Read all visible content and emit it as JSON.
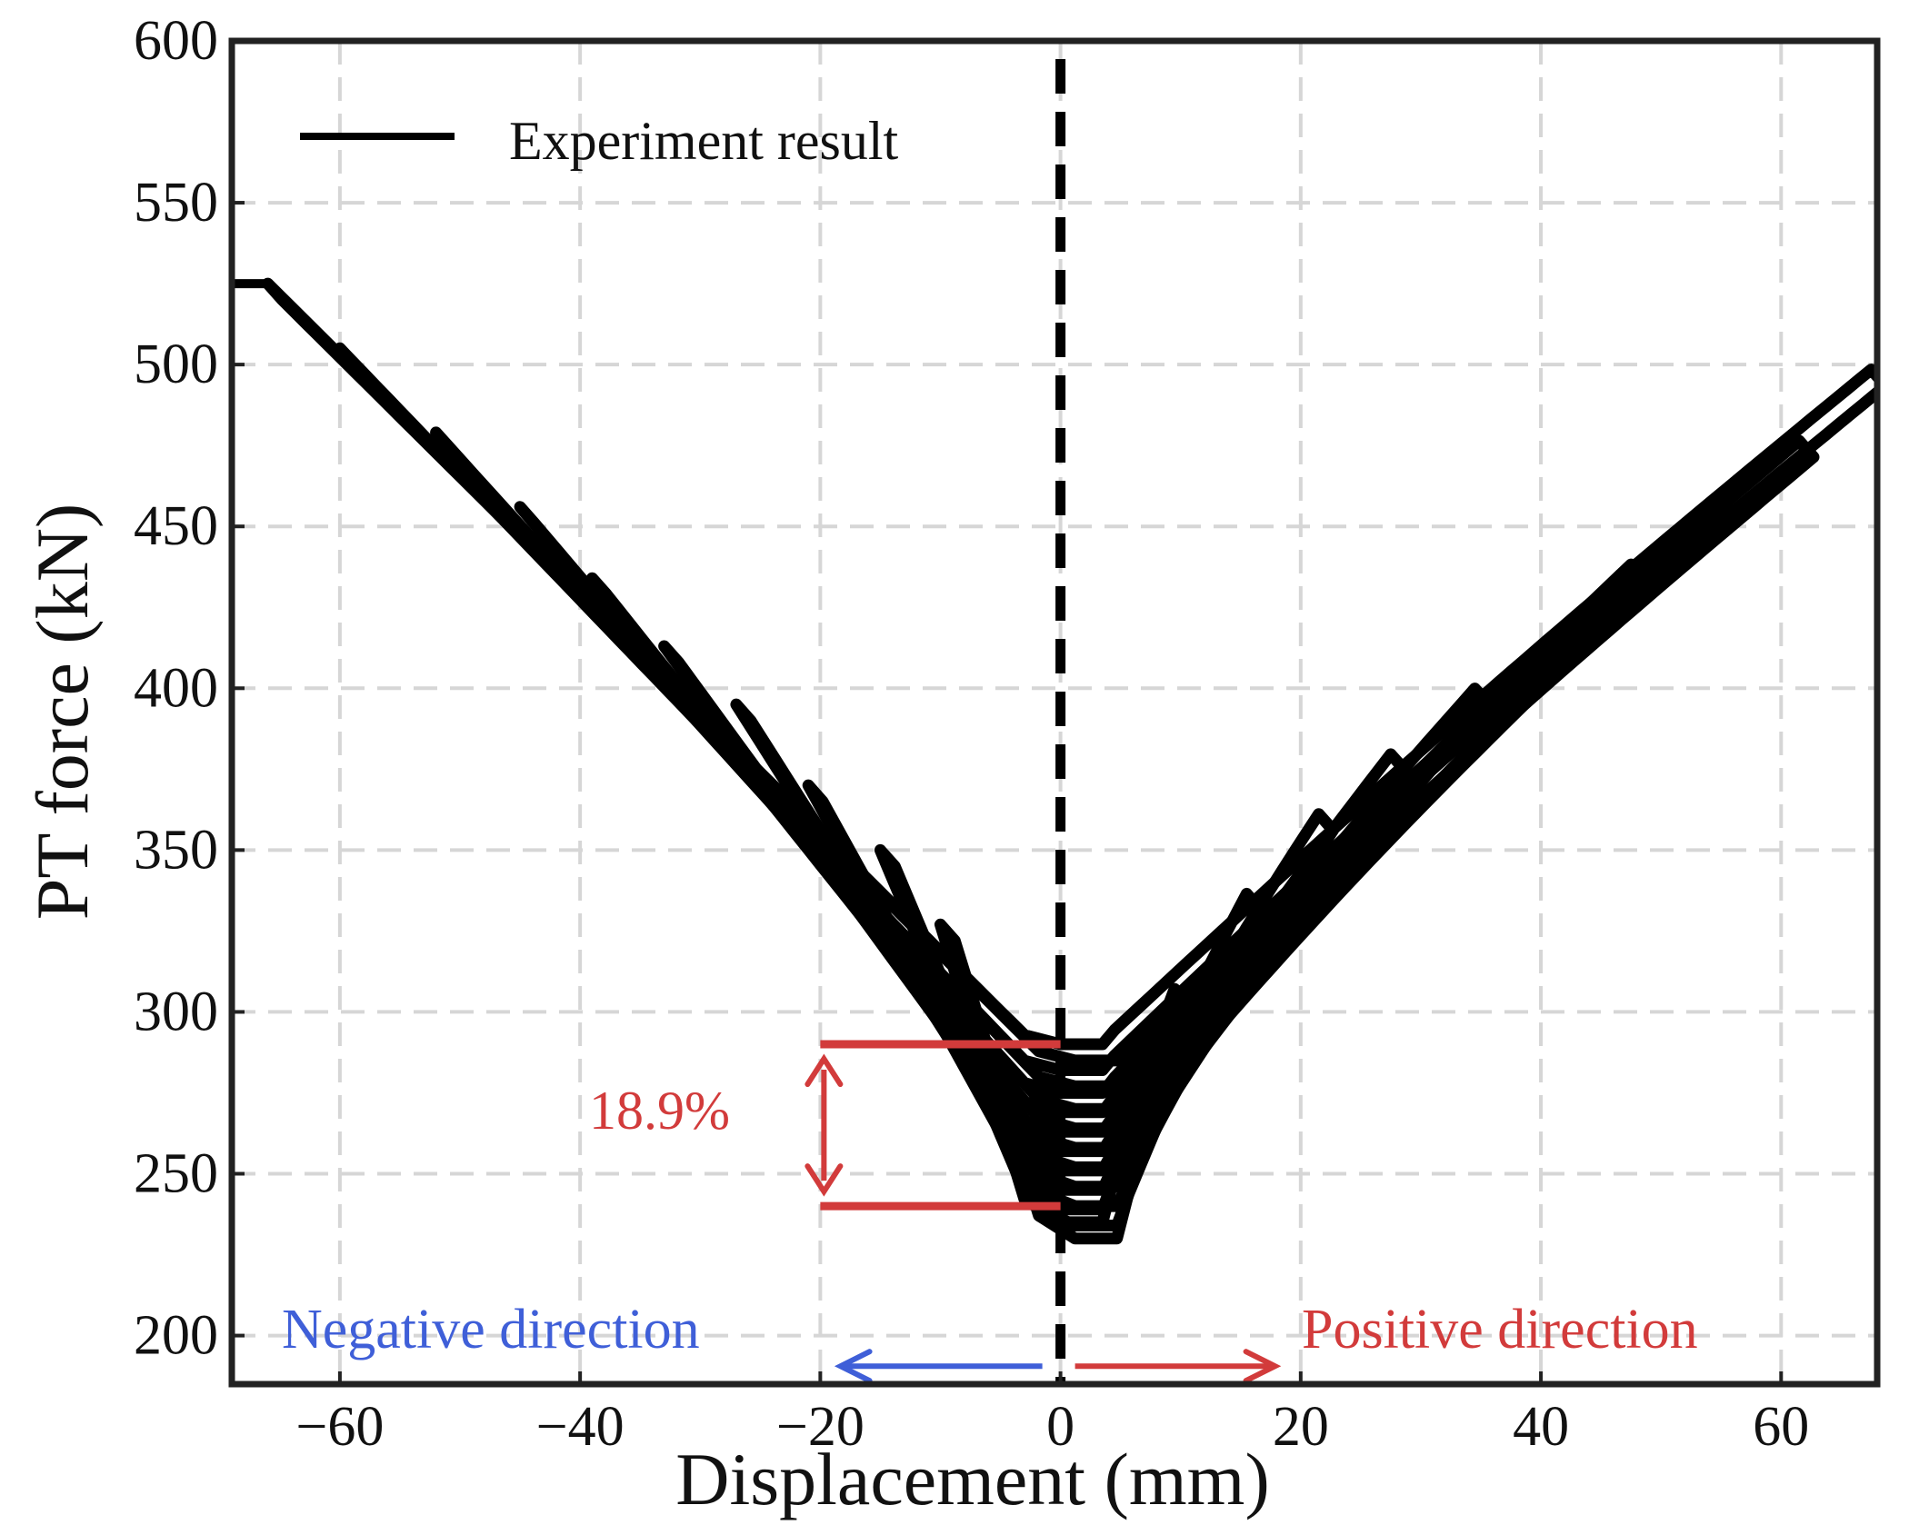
{
  "chart_data": {
    "type": "line",
    "title": "",
    "xlabel": "Displacement (mm)",
    "ylabel": "PT force (kN)",
    "xlim": [
      -69,
      68
    ],
    "ylim": [
      185,
      600
    ],
    "grid": true,
    "xticks": [
      -60,
      -40,
      -20,
      0,
      20,
      40,
      60
    ],
    "xtick_labels": [
      "−60",
      "−40",
      "−20",
      "0",
      "20",
      "40",
      "60"
    ],
    "yticks": [
      200,
      250,
      300,
      350,
      400,
      450,
      500,
      550,
      600
    ],
    "ytick_labels": [
      "200",
      "250",
      "300",
      "350",
      "400",
      "450",
      "500",
      "550",
      "600"
    ],
    "legend": {
      "position": "top-left",
      "entries": [
        "Experiment result"
      ]
    },
    "series": [
      {
        "name": "Experiment result",
        "color": "#000000",
        "description": "cyclic hysteresis loops",
        "loops": [
          {
            "x_min": -66,
            "y_left": 525,
            "y_min": 291,
            "x_max": 68,
            "y_right": 500
          },
          {
            "x_min": -60,
            "y_left": 505,
            "y_min": 283,
            "x_max": 62,
            "y_right": 478
          },
          {
            "x_min": -52,
            "y_left": 479,
            "y_min": 276,
            "x_max": 55,
            "y_right": 460
          },
          {
            "x_min": -45,
            "y_left": 456,
            "y_min": 270,
            "x_max": 48,
            "y_right": 440
          },
          {
            "x_min": -39,
            "y_left": 434,
            "y_min": 264,
            "x_max": 41,
            "y_right": 413
          },
          {
            "x_min": -33,
            "y_left": 413,
            "y_min": 258,
            "x_max": 35,
            "y_right": 402
          },
          {
            "x_min": -27,
            "y_left": 395,
            "y_min": 252,
            "x_max": 28,
            "y_right": 382
          },
          {
            "x_min": -21,
            "y_left": 370,
            "y_min": 246,
            "x_max": 22,
            "y_right": 364
          },
          {
            "x_min": -15,
            "y_left": 350,
            "y_min": 240,
            "x_max": 16,
            "y_right": 340
          },
          {
            "x_min": -10,
            "y_left": 327,
            "y_min": 236,
            "x_max": 10,
            "y_right": 312
          }
        ]
      }
    ],
    "reference_line": {
      "x": 0,
      "style": "dashed",
      "color": "#000000"
    },
    "annotations": {
      "upper_level": 290,
      "lower_level": 240,
      "level_x_range": [
        -20,
        0
      ],
      "percent_label": "18.9%",
      "negative_label": "Negative direction",
      "positive_label": "Positive direction",
      "negative_color": "#3f5fd8",
      "positive_color": "#d23b3b",
      "arrow_y": 190
    }
  }
}
